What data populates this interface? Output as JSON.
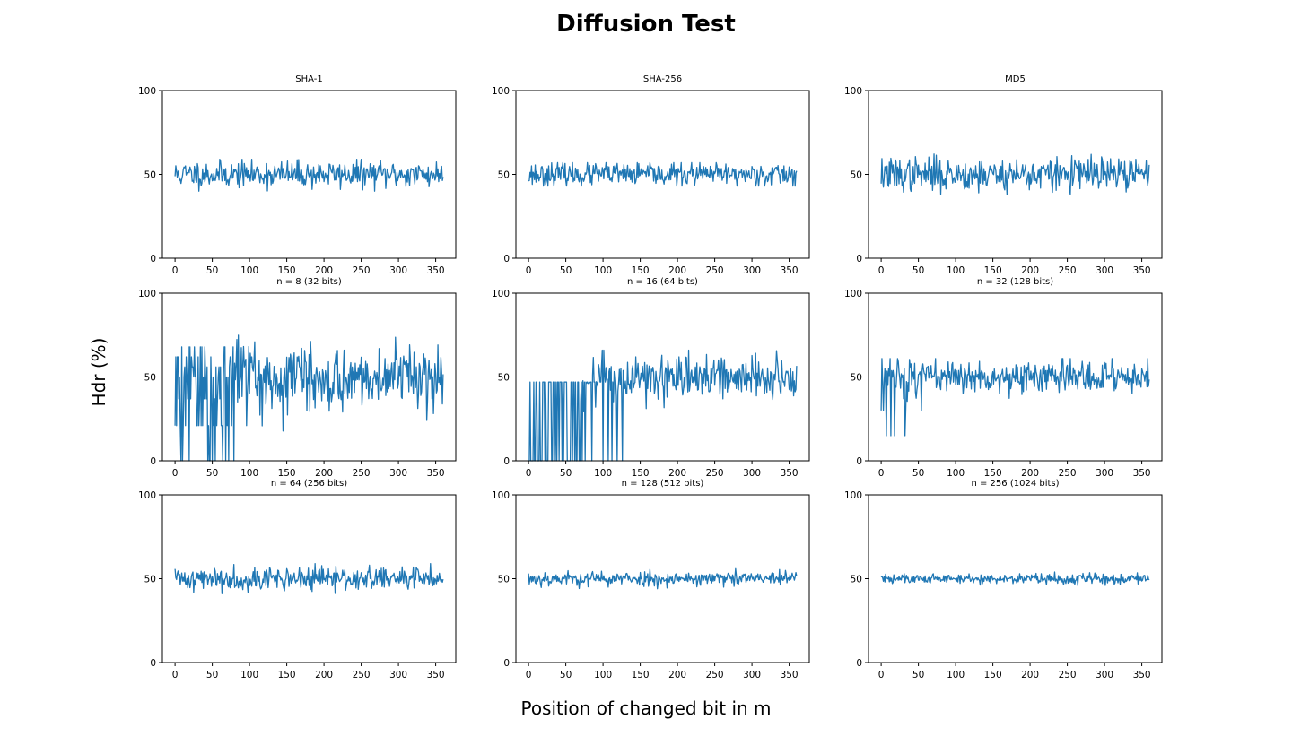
{
  "figure": {
    "title": "Diffusion Test",
    "xlabel": "Position of changed bit in m",
    "ylabel": "Hdr (%)"
  },
  "colors": {
    "line": "#1f77b4",
    "axes": "#000000"
  },
  "chart_data": [
    {
      "type": "line",
      "title": "SHA-1",
      "xlim": [
        -17,
        377
      ],
      "ylim": [
        0,
        100
      ],
      "xticks": [
        0,
        50,
        100,
        150,
        200,
        250,
        300,
        350
      ],
      "yticks": [
        0,
        50,
        100
      ],
      "pattern": "noise",
      "x_end": 360,
      "center": 50,
      "amplitude": 4,
      "min": 40,
      "max": 59,
      "seed": 11
    },
    {
      "type": "line",
      "title": "SHA-256",
      "xlim": [
        -17,
        377
      ],
      "ylim": [
        0,
        100
      ],
      "xticks": [
        0,
        50,
        100,
        150,
        200,
        250,
        300,
        350
      ],
      "yticks": [
        0,
        50,
        100
      ],
      "pattern": "noise",
      "x_end": 360,
      "center": 50,
      "amplitude": 3.5,
      "min": 43,
      "max": 57,
      "seed": 23
    },
    {
      "type": "line",
      "title": "MD5",
      "xlim": [
        -17,
        377
      ],
      "ylim": [
        0,
        100
      ],
      "xticks": [
        0,
        50,
        100,
        150,
        200,
        250,
        300,
        350
      ],
      "yticks": [
        0,
        50,
        100
      ],
      "pattern": "noise",
      "x_end": 360,
      "center": 50,
      "amplitude": 5,
      "min": 38,
      "max": 63,
      "seed": 37
    },
    {
      "type": "line",
      "title": "n = 8 (32 bits)",
      "xlim": [
        -17,
        377
      ],
      "ylim": [
        0,
        100
      ],
      "xticks": [
        0,
        50,
        100,
        150,
        200,
        250,
        300,
        350
      ],
      "yticks": [
        0,
        50,
        100
      ],
      "pattern": "converge",
      "x_end": 360,
      "center": 50,
      "amplitude": 10,
      "levels": [
        0,
        21,
        37,
        50,
        56,
        62,
        68
      ],
      "binary_until": 80,
      "sparse_until": 110,
      "min": 0,
      "max": 75,
      "seed": 5
    },
    {
      "type": "line",
      "title": "n = 16 (64 bits)",
      "xlim": [
        -17,
        377
      ],
      "ylim": [
        0,
        100
      ],
      "xticks": [
        0,
        50,
        100,
        150,
        200,
        250,
        300,
        350
      ],
      "yticks": [
        0,
        50,
        100
      ],
      "pattern": "converge",
      "x_end": 360,
      "center": 50,
      "amplitude": 7,
      "levels": [
        0,
        47
      ],
      "binary_until": 70,
      "sparse_until": 150,
      "min": 0,
      "max": 66,
      "seed": 9
    },
    {
      "type": "line",
      "title": "n = 32 (128 bits)",
      "xlim": [
        -17,
        377
      ],
      "ylim": [
        0,
        100
      ],
      "xticks": [
        0,
        50,
        100,
        150,
        200,
        250,
        300,
        350
      ],
      "yticks": [
        0,
        50,
        100
      ],
      "pattern": "converge",
      "x_end": 360,
      "center": 50,
      "amplitude": 5,
      "levels": [
        15,
        30,
        45,
        55
      ],
      "binary_until": 0,
      "sparse_until": 60,
      "min": 14,
      "max": 61,
      "seed": 13
    },
    {
      "type": "line",
      "title": "n = 64 (256 bits)",
      "xlim": [
        -17,
        377
      ],
      "ylim": [
        0,
        100
      ],
      "xticks": [
        0,
        50,
        100,
        150,
        200,
        250,
        300,
        350
      ],
      "yticks": [
        0,
        50,
        100
      ],
      "pattern": "noise",
      "x_end": 360,
      "center": 50,
      "amplitude": 3.5,
      "min": 40,
      "max": 59,
      "seed": 41
    },
    {
      "type": "line",
      "title": "n = 128 (512 bits)",
      "xlim": [
        -17,
        377
      ],
      "ylim": [
        0,
        100
      ],
      "xticks": [
        0,
        50,
        100,
        150,
        200,
        250,
        300,
        350
      ],
      "yticks": [
        0,
        50,
        100
      ],
      "pattern": "noise",
      "x_end": 360,
      "center": 50,
      "amplitude": 2.2,
      "min": 44,
      "max": 56,
      "seed": 53
    },
    {
      "type": "line",
      "title": "n = 256 (1024 bits)",
      "xlim": [
        -17,
        377
      ],
      "ylim": [
        0,
        100
      ],
      "xticks": [
        0,
        50,
        100,
        150,
        200,
        250,
        300,
        350
      ],
      "yticks": [
        0,
        50,
        100
      ],
      "pattern": "noise",
      "x_end": 360,
      "center": 50,
      "amplitude": 1.6,
      "min": 46,
      "max": 54,
      "seed": 61
    }
  ]
}
